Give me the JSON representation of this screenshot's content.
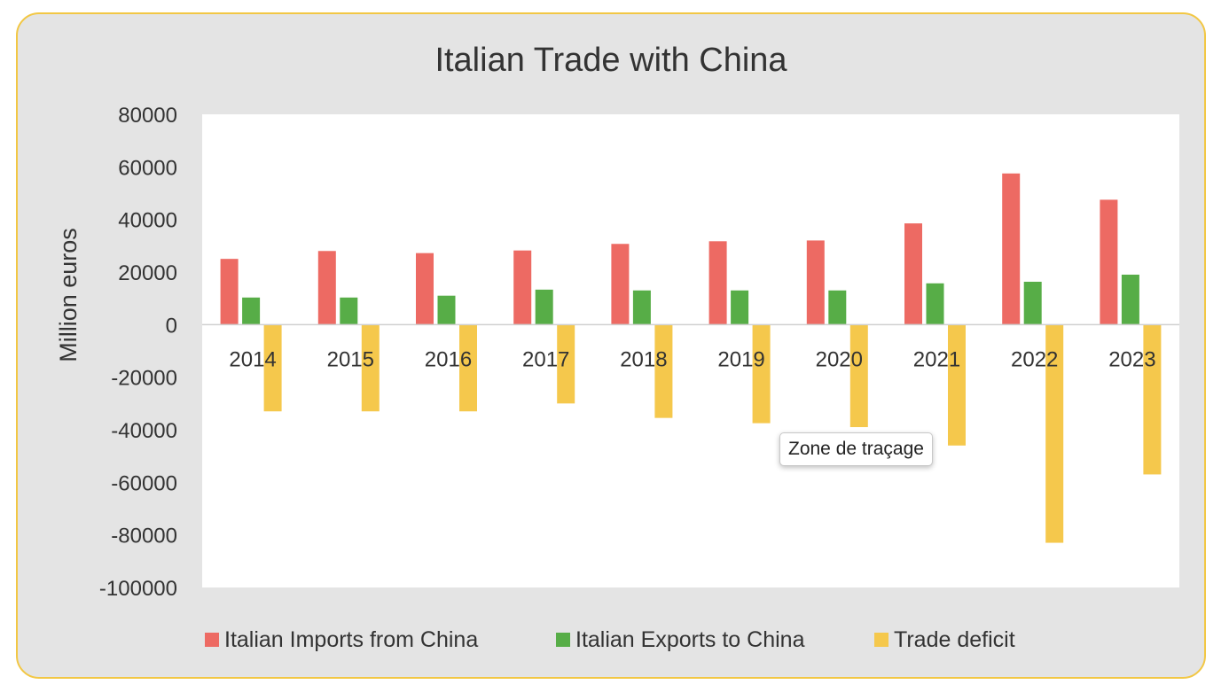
{
  "tooltip": {
    "text": "Zone de traçage"
  },
  "chart_data": {
    "type": "bar",
    "title": "Italian Trade with China",
    "xlabel": "",
    "ylabel": "Million euros",
    "ylim": [
      -100000,
      80000
    ],
    "yticks": [
      80000,
      60000,
      40000,
      20000,
      0,
      -20000,
      -40000,
      -60000,
      -80000,
      -100000
    ],
    "grid": false,
    "legend_position": "bottom",
    "categories": [
      "2014",
      "2015",
      "2016",
      "2017",
      "2018",
      "2019",
      "2020",
      "2021",
      "2022",
      "2023"
    ],
    "series": [
      {
        "name": "Italian Imports from China",
        "color": "#ed6a63",
        "values": [
          25000,
          28000,
          27200,
          28200,
          30700,
          31700,
          32000,
          38500,
          57500,
          47500
        ]
      },
      {
        "name": "Italian Exports to China",
        "color": "#57ad47",
        "values": [
          10300,
          10300,
          11000,
          13300,
          13000,
          13000,
          13000,
          15700,
          16300,
          19000
        ]
      },
      {
        "name": "Trade deficit",
        "color": "#f5c84c",
        "values": [
          -33000,
          -33000,
          -33000,
          -30000,
          -35500,
          -37500,
          -39000,
          -46000,
          -83000,
          -57000
        ]
      }
    ]
  }
}
